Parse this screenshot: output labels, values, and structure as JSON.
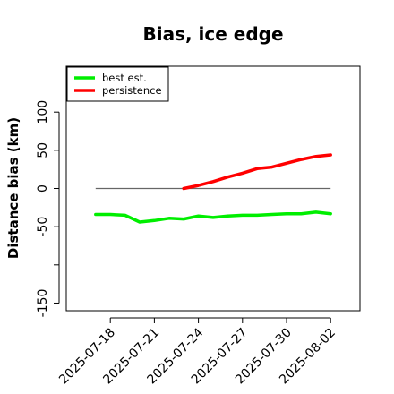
{
  "chart_data": {
    "type": "line",
    "title": "Bias, ice edge",
    "xlabel": "",
    "ylabel": "Distance bias (km)",
    "xlim": [
      "2025-07-15",
      "2025-08-04"
    ],
    "ylim": [
      -160,
      160
    ],
    "yticks": [
      -150,
      -50,
      0,
      50,
      100
    ],
    "yticks_unlabeled": [
      -100
    ],
    "xticks": [
      "2025-07-18",
      "2025-07-21",
      "2025-07-24",
      "2025-07-27",
      "2025-07-30",
      "2025-08-02"
    ],
    "grid": false,
    "legend_position": "top-left",
    "reference_line": {
      "y": 0,
      "color": "#666666",
      "x_start": "2025-07-17",
      "x_end": "2025-08-02"
    },
    "series": [
      {
        "name": "best est.",
        "color": "#00ee00",
        "x": [
          "2025-07-17",
          "2025-07-18",
          "2025-07-19",
          "2025-07-20",
          "2025-07-21",
          "2025-07-22",
          "2025-07-23",
          "2025-07-24",
          "2025-07-25",
          "2025-07-26",
          "2025-07-27",
          "2025-07-28",
          "2025-07-29",
          "2025-07-30",
          "2025-07-31",
          "2025-08-01",
          "2025-08-02"
        ],
        "values": [
          -34,
          -34,
          -35,
          -44,
          -42,
          -39,
          -40,
          -36,
          -38,
          -36,
          -35,
          -35,
          -34,
          -33,
          -33,
          -31,
          -33
        ]
      },
      {
        "name": "persistence",
        "color": "#ff0000",
        "x": [
          "2025-07-23",
          "2025-07-24",
          "2025-07-25",
          "2025-07-26",
          "2025-07-27",
          "2025-07-28",
          "2025-07-29",
          "2025-07-30",
          "2025-07-31",
          "2025-08-01",
          "2025-08-02"
        ],
        "values": [
          0,
          4,
          9,
          15,
          20,
          26,
          28,
          33,
          38,
          42,
          44
        ]
      }
    ]
  }
}
